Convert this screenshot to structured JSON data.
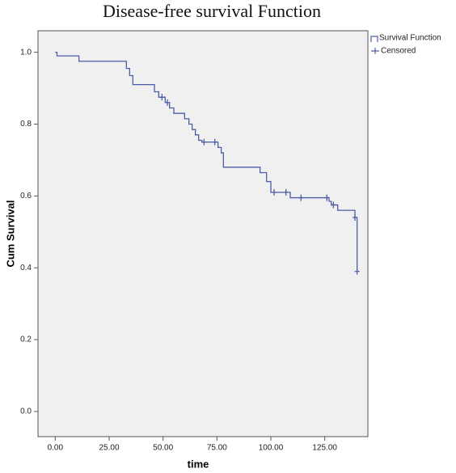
{
  "chart_data": {
    "type": "step",
    "title": "Disease-free survival Function",
    "x_label": "time",
    "y_label": "Cum Survival",
    "xlim": [
      -8,
      145
    ],
    "ylim": [
      -0.07,
      1.06
    ],
    "xticks": [
      {
        "value": 0,
        "label": "0.00"
      },
      {
        "value": 25,
        "label": "25.00"
      },
      {
        "value": 50,
        "label": "50.00"
      },
      {
        "value": 75,
        "label": "75.00"
      },
      {
        "value": 100,
        "label": "100.00"
      },
      {
        "value": 125,
        "label": "125.00"
      }
    ],
    "yticks": [
      {
        "value": 0,
        "label": "0.0"
      },
      0.2,
      0.4,
      0.6,
      0.8,
      {
        "value": 1,
        "label": "1.0"
      }
    ],
    "legend": "right",
    "series": [
      {
        "name": "Survival Function",
        "color": "#4b5ea6",
        "x": [
          0,
          0.8,
          11,
          33,
          34.5,
          36,
          46,
          48,
          51,
          53,
          55,
          60,
          62,
          63.5,
          65,
          66.5,
          68,
          75.5,
          77,
          78,
          95,
          98,
          100,
          109,
          127,
          128,
          131,
          139,
          140
        ],
        "values": [
          1.0,
          0.99,
          0.975,
          0.955,
          0.935,
          0.91,
          0.89,
          0.875,
          0.86,
          0.845,
          0.83,
          0.815,
          0.8,
          0.785,
          0.77,
          0.755,
          0.75,
          0.735,
          0.72,
          0.68,
          0.665,
          0.64,
          0.61,
          0.595,
          0.585,
          0.575,
          0.56,
          0.54,
          0.39
        ]
      },
      {
        "name": "Censored",
        "color": "#4b5ea6",
        "x": [
          49.5,
          52,
          69,
          74,
          101.5,
          107,
          114,
          126,
          129,
          139,
          140
        ],
        "values": [
          0.875,
          0.86,
          0.75,
          0.75,
          0.61,
          0.61,
          0.595,
          0.595,
          0.575,
          0.54,
          0.39
        ]
      }
    ]
  }
}
